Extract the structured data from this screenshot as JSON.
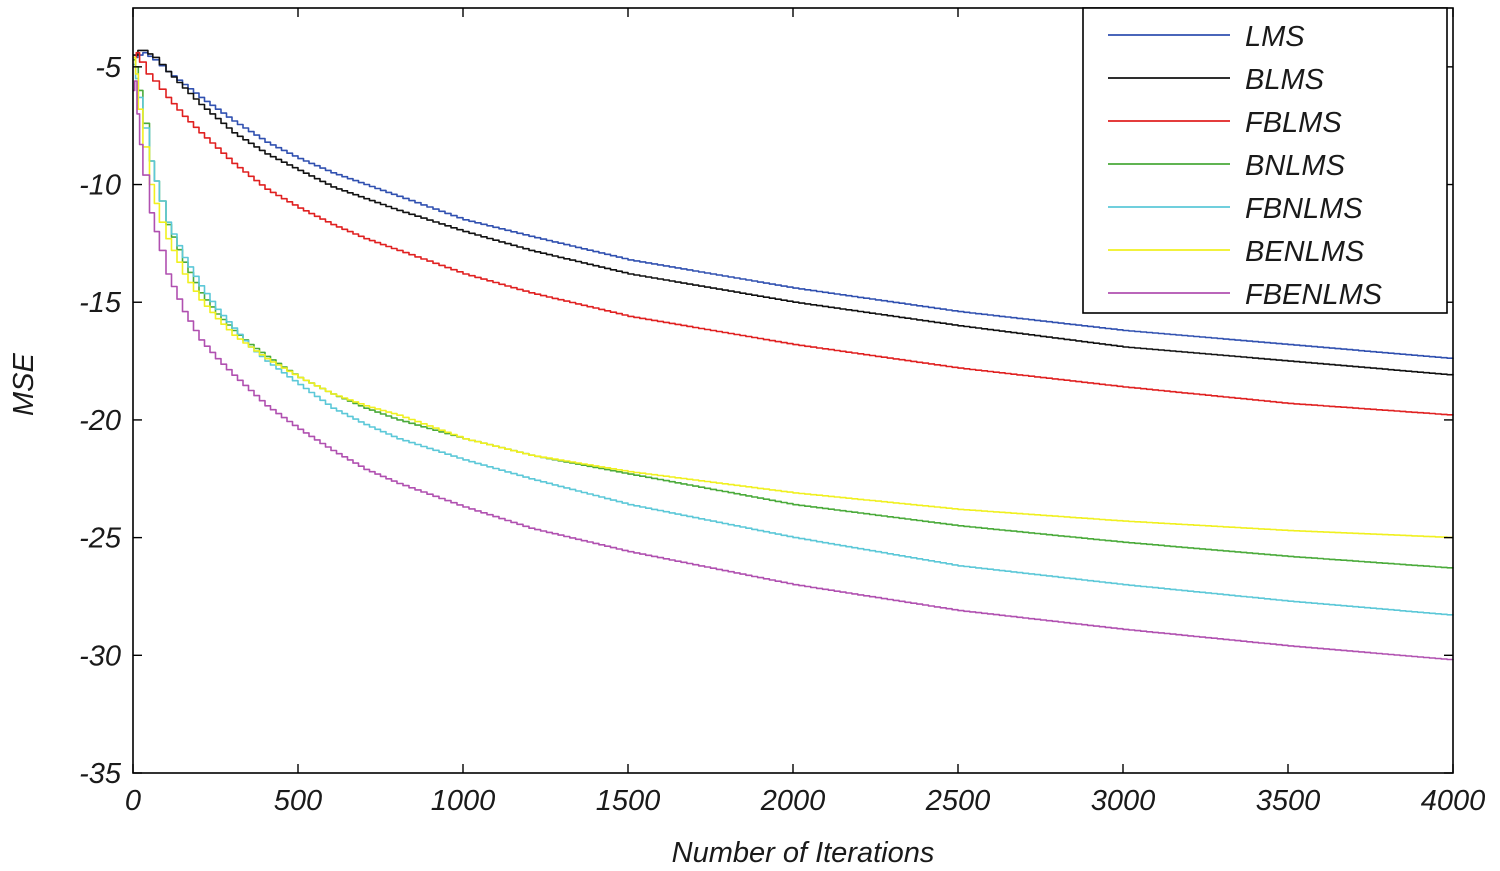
{
  "chart_data": {
    "type": "line",
    "xlabel": "Number of Iterations",
    "ylabel": "MSE",
    "xlim": [
      0,
      4000
    ],
    "ylim": [
      -35,
      -2.5
    ],
    "xticks": [
      0,
      500,
      1000,
      1500,
      2000,
      2500,
      3000,
      3500,
      4000
    ],
    "yticks": [
      -35,
      -30,
      -25,
      -20,
      -15,
      -10,
      -5
    ],
    "grid": false,
    "legend_position": "top-right",
    "series": [
      {
        "name": "LMS",
        "color": "#3050b0",
        "x": [
          0,
          15,
          30,
          60,
          100,
          200,
          300,
          400,
          500,
          600,
          700,
          800,
          1000,
          1200,
          1500,
          2000,
          2500,
          3000,
          3500,
          4000
        ],
        "y": [
          -4.6,
          -4.5,
          -4.4,
          -4.7,
          -5.2,
          -6.3,
          -7.3,
          -8.2,
          -8.9,
          -9.5,
          -10.0,
          -10.5,
          -11.5,
          -12.2,
          -13.2,
          -14.4,
          -15.4,
          -16.2,
          -16.8,
          -17.4
        ]
      },
      {
        "name": "BLMS",
        "color": "#111111",
        "x": [
          0,
          15,
          30,
          60,
          100,
          200,
          300,
          400,
          500,
          600,
          700,
          800,
          1000,
          1200,
          1500,
          2000,
          2500,
          3000,
          3500,
          4000
        ],
        "y": [
          -4.5,
          -4.3,
          -4.3,
          -4.6,
          -5.2,
          -6.6,
          -7.8,
          -8.7,
          -9.4,
          -10.1,
          -10.6,
          -11.1,
          -12.0,
          -12.8,
          -13.8,
          -15.0,
          -16.0,
          -16.9,
          -17.5,
          -18.1
        ]
      },
      {
        "name": "FBLMS",
        "color": "#e02020",
        "x": [
          0,
          10,
          20,
          40,
          60,
          100,
          150,
          200,
          300,
          400,
          500,
          600,
          700,
          800,
          1000,
          1200,
          1500,
          2000,
          2500,
          3000,
          3500,
          4000
        ],
        "y": [
          -4.6,
          -4.4,
          -4.8,
          -5.3,
          -5.6,
          -6.3,
          -7.1,
          -7.8,
          -9.1,
          -10.2,
          -11.0,
          -11.7,
          -12.3,
          -12.8,
          -13.8,
          -14.6,
          -15.6,
          -16.8,
          -17.8,
          -18.6,
          -19.3,
          -19.8
        ]
      },
      {
        "name": "BNLMS",
        "color": "#4aaa3a",
        "x": [
          0,
          8,
          16,
          30,
          50,
          80,
          100,
          150,
          200,
          250,
          300,
          350,
          400,
          500,
          600,
          700,
          800,
          1000,
          1200,
          1500,
          2000,
          2500,
          3000,
          3500,
          4000
        ],
        "y": [
          -4.7,
          -5.0,
          -6.0,
          -7.4,
          -9.0,
          -10.7,
          -11.7,
          -13.3,
          -14.6,
          -15.5,
          -16.2,
          -16.8,
          -17.3,
          -18.2,
          -18.9,
          -19.5,
          -20.0,
          -20.8,
          -21.5,
          -22.3,
          -23.6,
          -24.5,
          -25.2,
          -25.8,
          -26.3
        ]
      },
      {
        "name": "FBNLMS",
        "color": "#5cc8d8",
        "x": [
          0,
          8,
          16,
          30,
          50,
          80,
          100,
          150,
          200,
          250,
          300,
          350,
          400,
          500,
          600,
          700,
          800,
          1000,
          1200,
          1500,
          2000,
          2500,
          3000,
          3500,
          4000
        ],
        "y": [
          -4.9,
          -5.5,
          -6.3,
          -7.6,
          -9.0,
          -10.7,
          -11.6,
          -13.1,
          -14.3,
          -15.3,
          -16.1,
          -16.9,
          -17.5,
          -18.5,
          -19.5,
          -20.2,
          -20.8,
          -21.7,
          -22.5,
          -23.6,
          -25.0,
          -26.2,
          -27.0,
          -27.7,
          -28.3
        ]
      },
      {
        "name": "BENLMS",
        "color": "#f0f020",
        "x": [
          0,
          8,
          16,
          30,
          50,
          80,
          100,
          150,
          200,
          250,
          300,
          400,
          500,
          600,
          700,
          800,
          1000,
          1200,
          1500,
          2000,
          2500,
          3000,
          3500,
          4000
        ],
        "y": [
          -4.6,
          -5.3,
          -6.8,
          -8.4,
          -10.0,
          -11.6,
          -12.3,
          -13.8,
          -14.9,
          -15.7,
          -16.4,
          -17.4,
          -18.2,
          -18.9,
          -19.4,
          -19.8,
          -20.8,
          -21.5,
          -22.2,
          -23.1,
          -23.8,
          -24.3,
          -24.7,
          -25.0
        ]
      },
      {
        "name": "FBENLMS",
        "color": "#b050b0",
        "x": [
          0,
          5,
          12,
          20,
          30,
          50,
          80,
          100,
          150,
          200,
          250,
          300,
          400,
          500,
          600,
          700,
          800,
          1000,
          1200,
          1500,
          2000,
          2500,
          3000,
          3500,
          4000
        ],
        "y": [
          -6.0,
          -5.6,
          -7.0,
          -8.3,
          -9.6,
          -11.2,
          -12.8,
          -13.8,
          -15.4,
          -16.6,
          -17.4,
          -18.1,
          -19.4,
          -20.4,
          -21.3,
          -22.1,
          -22.7,
          -23.7,
          -24.6,
          -25.6,
          -27.0,
          -28.1,
          -28.9,
          -29.6,
          -30.2
        ]
      }
    ]
  }
}
